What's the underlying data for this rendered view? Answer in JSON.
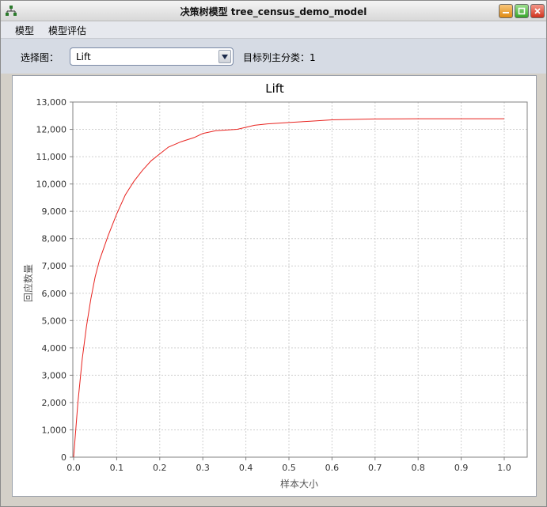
{
  "window": {
    "title": "决策树模型 tree_census_demo_model",
    "icon": "tree-diagram-icon"
  },
  "menu": {
    "items": [
      {
        "label": "模型"
      },
      {
        "label": "模型评估"
      }
    ]
  },
  "toolbar": {
    "select_label": "选择图：",
    "selected_chart": "Lift",
    "target_label": "目标列主分类：1"
  },
  "chart_data": {
    "type": "line",
    "title": "Lift",
    "xlabel": "样本大小",
    "ylabel": "回应数量",
    "xlim": [
      0,
      1.0
    ],
    "ylim": [
      0,
      13000
    ],
    "xticks": [
      "0.0",
      "0.1",
      "0.2",
      "0.3",
      "0.4",
      "0.5",
      "0.6",
      "0.7",
      "0.8",
      "0.9",
      "1.0"
    ],
    "yticks": [
      "0",
      "1,000",
      "2,000",
      "3,000",
      "4,000",
      "5,000",
      "6,000",
      "7,000",
      "8,000",
      "9,000",
      "10,000",
      "11,000",
      "12,000",
      "13,000"
    ],
    "grid": true,
    "line_color": "#e8231f",
    "x": [
      0,
      0.01,
      0.02,
      0.03,
      0.04,
      0.05,
      0.06,
      0.08,
      0.1,
      0.12,
      0.14,
      0.16,
      0.18,
      0.2,
      0.22,
      0.25,
      0.28,
      0.3,
      0.33,
      0.38,
      0.42,
      0.45,
      0.5,
      0.55,
      0.6,
      0.7,
      0.8,
      0.9,
      1.0
    ],
    "y": [
      0,
      2000,
      3600,
      4800,
      5800,
      6600,
      7200,
      8100,
      8900,
      9600,
      10100,
      10500,
      10850,
      11100,
      11350,
      11550,
      11700,
      11850,
      11950,
      12000,
      12150,
      12200,
      12250,
      12300,
      12350,
      12380,
      12390,
      12390,
      12390
    ]
  }
}
